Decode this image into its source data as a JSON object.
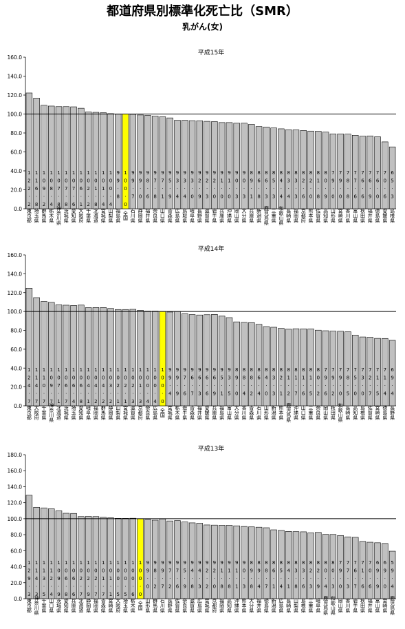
{
  "title": "都道府県別標準化死亡比（SMR）",
  "subtitle": "乳がん(女)",
  "colors": {
    "bar": "#c0c0c0",
    "highlight": "#ffff00",
    "outline": "#000000"
  },
  "chart_data": [
    {
      "type": "bar",
      "title": "平成15年",
      "ylim": [
        0,
        160
      ],
      "yticks": [
        "0.0",
        "20.0",
        "40.0",
        "60.0",
        "80.0",
        "100.0",
        "120.0",
        "140.0",
        "160.0"
      ],
      "reference_line": 100,
      "highlight": "全国",
      "categories": [
        "東京都",
        "埼玉県",
        "群馬県",
        "栃木県",
        "神奈川県",
        "茨城県",
        "愛知県",
        "大阪府",
        "千葉県",
        "北海道",
        "宮城県",
        "山梨県",
        "福島県",
        "全国",
        "石川県",
        "静岡県",
        "福井県",
        "奈良県",
        "山口県",
        "青森県",
        "広島県",
        "鳥取県",
        "岐阜県",
        "長野県",
        "滋賀県",
        "岩手県",
        "兵庫県",
        "沖縄県",
        "岡山県",
        "大分県",
        "兵庫県",
        "新潟県",
        "鹿児島県",
        "三重県",
        "和歌山県",
        "長崎県",
        "福岡県",
        "京都府",
        "熊本県",
        "佐賀県",
        "高知県",
        "山形県",
        "宮崎県",
        "香川県",
        "富山県",
        "秋田県",
        "福井県",
        "徳島県",
        "愛媛県",
        "島根県"
      ],
      "values": [
        122.2,
        116.8,
        109.2,
        108.4,
        107.8,
        107.8,
        107.6,
        106.1,
        102.2,
        101.8,
        101.4,
        100.4,
        99.8,
        100.0,
        99.7,
        99.0,
        98.6,
        97.8,
        97.1,
        95.9,
        93.4,
        93.4,
        93.0,
        92.9,
        92.3,
        92.0,
        91.0,
        91.0,
        90.3,
        90.3,
        89.1,
        86.8,
        86.3,
        85.3,
        84.4,
        83.4,
        83.3,
        82.6,
        82.0,
        81.8,
        80.9,
        79.0,
        79.0,
        78.8,
        77.6,
        76.6,
        76.9,
        76.0,
        70.6,
        65.3
      ],
      "value_labels": [
        "122.2",
        "116.8",
        "109.2",
        "108.4",
        "107.8",
        "107.8",
        "107.6",
        "106.1",
        "102.2",
        "101.8",
        "101.4",
        "100.4",
        "99.8",
        "100.0",
        "99.7",
        "99.0",
        "98.6",
        "97.8",
        "97.1",
        "95.9",
        "93.4",
        "93.4",
        "93.0",
        "92.9",
        "92.3",
        "92.0",
        "91.0",
        "91.0",
        "90.3",
        "90.3",
        "89.1",
        "86.8",
        "86.3",
        "85.3",
        "84.4",
        "83.4",
        "83.3",
        "82.6",
        "82.0",
        "81.8",
        "80.9",
        "79.0",
        "79.0",
        "78.8",
        "77.6",
        "76.6",
        "76.9",
        "76.0",
        "70.6",
        "65.3"
      ]
    },
    {
      "type": "bar",
      "title": "平成14年",
      "ylim": [
        0,
        160
      ],
      "yticks": [
        "0.0",
        "20.0",
        "40.0",
        "60.0",
        "80.0",
        "100.0",
        "120.0",
        "140.0",
        "160.0"
      ],
      "reference_line": 100,
      "highlight": "全国",
      "categories": [
        "東京都",
        "大阪府",
        "千葉県",
        "神奈川県",
        "北海道",
        "茨城県",
        "埼玉県",
        "愛知県",
        "岐阜県",
        "福岡県",
        "群馬県",
        "静岡県",
        "山梨県",
        "宮城県",
        "滋賀県",
        "京都府",
        "奈良県",
        "広島県",
        "全国",
        "宮城県",
        "栃木県",
        "岩手県",
        "青森県",
        "福井県",
        "愛媛県",
        "兵庫県",
        "福島県",
        "富山県",
        "大分県",
        "香川県",
        "青森県",
        "石川県",
        "山形県",
        "新潟県",
        "熊本県",
        "鹿児島県",
        "沖縄県",
        "山口県",
        "三重県",
        "奈良県",
        "岡山県",
        "秋田県",
        "和歌山県",
        "長崎県",
        "高知県",
        "島根県",
        "佐賀県",
        "宮崎県",
        "徳島県",
        "長野県"
      ],
      "values": [
        124.7,
        114.7,
        110.7,
        109.7,
        107.1,
        106.7,
        106.4,
        106.8,
        104.1,
        104.2,
        104.2,
        103.2,
        102.1,
        102.1,
        102.3,
        101.3,
        100.4,
        100.4,
        100.0,
        99.4,
        99.9,
        97.6,
        96.7,
        96.3,
        96.6,
        96.9,
        95.1,
        93.5,
        89.0,
        88.4,
        88.2,
        86.4,
        84.0,
        83.3,
        82.1,
        81.2,
        81.7,
        81.6,
        81.5,
        80.2,
        79.6,
        79.2,
        79.0,
        78.5,
        75.0,
        73.0,
        72.7,
        71.5,
        71.4,
        69.4
      ],
      "value_labels": [
        "124.7",
        "114.7",
        "110.7",
        "109.7",
        "107.1",
        "106.7",
        "106.4",
        "106.8",
        "104.1",
        "104.2",
        "104.2",
        "103.2",
        "102.1",
        "102.1",
        "102.3",
        "101.3",
        "100.4",
        "100.4",
        "100.0",
        "99.4",
        "99.9",
        "97.6",
        "96.7",
        "96.3",
        "96.6",
        "96.9",
        "95.1",
        "93.5",
        "89.0",
        "88.4",
        "88.2",
        "86.4",
        "84.0",
        "83.3",
        "82.1",
        "81.2",
        "81.7",
        "81.6",
        "81.5",
        "80.2",
        "79.6",
        "79.2",
        "79.0",
        "78.5",
        "75.0",
        "73.0",
        "72.7",
        "71.5",
        "71.4",
        "69.4"
      ]
    },
    {
      "type": "bar",
      "title": "平成13年",
      "ylim": [
        0,
        180
      ],
      "yticks": [
        "0.0",
        "20.0",
        "40.0",
        "60.0",
        "80.0",
        "100.0",
        "120.0",
        "140.0",
        "160.0",
        "180.0"
      ],
      "reference_line": 100,
      "highlight": "全国",
      "categories": [
        "東京都",
        "神奈川県",
        "千葉県",
        "山口県",
        "茨城県",
        "愛知県",
        "兵庫県",
        "北海道",
        "静岡県",
        "福岡県",
        "青森県",
        "宮崎県",
        "大阪府",
        "埼玉県",
        "栃木県",
        "全国",
        "山形県",
        "群馬県",
        "石川県",
        "長野県",
        "佐賀県",
        "奈良県",
        "滋賀県",
        "広島県",
        "宮城県",
        "京都府",
        "福岡県",
        "高知県",
        "沖縄県",
        "熊本県",
        "大分県",
        "福井県",
        "徳島県",
        "新潟県",
        "広島県",
        "長崎県",
        "山梨県",
        "島根県",
        "三重県",
        "岐阜県",
        "鹿児島県",
        "和歌山県",
        "岡山県",
        "香川県",
        "岩手県",
        "秋田県",
        "福井県",
        "富山県",
        "宮崎県",
        "鹿児島県"
      ],
      "values": [
        129.3,
        114.3,
        113.5,
        112.4,
        109.9,
        106.8,
        106.6,
        102.7,
        102.9,
        102.7,
        101.7,
        101.1,
        100.5,
        100.5,
        100.6,
        100.0,
        99.0,
        98.2,
        99.7,
        97.2,
        97.6,
        95.9,
        94.8,
        94.3,
        92.2,
        92.0,
        91.8,
        91.8,
        91.1,
        90.3,
        89.8,
        89.4,
        88.7,
        86.1,
        85.4,
        84.1,
        83.8,
        83.6,
        82.3,
        82.9,
        80.4,
        80.3,
        79.0,
        77.3,
        76.7,
        71.6,
        70.6,
        69.9,
        69.0,
        59.4
      ],
      "value_labels": [
        "129.3",
        "114.3",
        "113.5",
        "112.4",
        "109.9",
        "106.8",
        "106.6",
        "102.7",
        "102.9",
        "102.7",
        "101.7",
        "101.1",
        "100.5",
        "100.5",
        "100.6",
        "100.0",
        "99.0",
        "98.2",
        "99.7",
        "97.2",
        "97.6",
        "95.9",
        "94.8",
        "94.3",
        "92.2",
        "92.0",
        "91.8",
        "91.8",
        "91.1",
        "90.3",
        "89.8",
        "89.4",
        "88.7",
        "86.1",
        "85.4",
        "84.1",
        "83.8",
        "83.6",
        "82.3",
        "82.9",
        "80.4",
        "80.3",
        "79.0",
        "77.3",
        "76.7",
        "71.6",
        "70.6",
        "69.9",
        "69.0",
        "59.4"
      ]
    }
  ]
}
